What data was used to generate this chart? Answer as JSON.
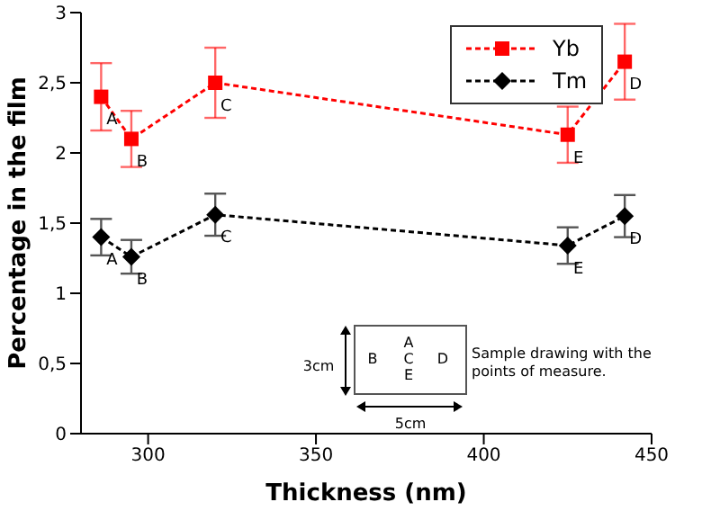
{
  "chart_data": {
    "type": "line",
    "xlabel": "Thickness (nm)",
    "ylabel": "Percentage in the film",
    "x": [
      286,
      295,
      320,
      425,
      442
    ],
    "series": [
      {
        "name": "Yb",
        "color": "#ff0000",
        "values": [
          2.4,
          2.1,
          2.5,
          2.13,
          2.65
        ],
        "errors": [
          0.24,
          0.2,
          0.25,
          0.2,
          0.27
        ],
        "marker": "square",
        "line_style": "dashed"
      },
      {
        "name": "Tm",
        "color": "#000000",
        "values": [
          1.4,
          1.26,
          1.56,
          1.34,
          1.55
        ],
        "errors": [
          0.13,
          0.12,
          0.15,
          0.13,
          0.15
        ],
        "marker": "diamond",
        "line_style": "dashed"
      }
    ],
    "xlim": [
      280,
      450
    ],
    "xticks": [
      300,
      350,
      400,
      450
    ],
    "ylim": [
      0,
      3
    ],
    "yticks": [
      0,
      {
        "value": 0.5,
        "label": "0,5"
      },
      1,
      {
        "value": 1.5,
        "label": "1,5"
      },
      2,
      {
        "value": 2.5,
        "label": "2,5"
      },
      3
    ],
    "grid": false,
    "legend": "top right",
    "annotations": [
      {
        "text": "A",
        "x": 286,
        "y": 2.4
      },
      {
        "text": "B",
        "x": 295,
        "y": 2.1
      },
      {
        "text": "C",
        "x": 320,
        "y": 2.5
      },
      {
        "text": "E",
        "x": 425,
        "y": 2.13
      },
      {
        "text": "D",
        "x": 442,
        "y": 2.65
      },
      {
        "text": "A",
        "x": 286,
        "y": 1.4
      },
      {
        "text": "B",
        "x": 295,
        "y": 1.26
      },
      {
        "text": "C",
        "x": 320,
        "y": 1.56
      },
      {
        "text": "E",
        "x": 425,
        "y": 1.34
      },
      {
        "text": "D",
        "x": 442,
        "y": 1.55
      },
      "A",
      "C",
      "E",
      "B",
      "D",
      "3cm",
      "5cm",
      "Sample drawing with the points of measure."
    ]
  }
}
